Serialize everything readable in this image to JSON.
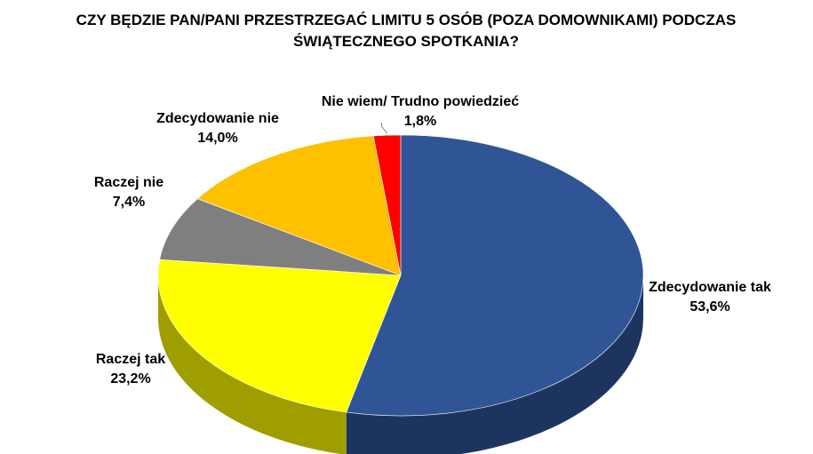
{
  "chart_data": {
    "type": "pie",
    "title_lines": [
      "CZY BĘDZIE PAN/PANI PRZESTRZEGAĆ LIMITU 5 OSÓB (POZA DOMOWNIKAMI) PODCZAS",
      "ŚWIĄTECZNEGO SPOTKANIA?"
    ],
    "slices": [
      {
        "label": "Zdecydowanie tak",
        "value": 53.6,
        "value_text": "53,6%",
        "color": "#2F5597"
      },
      {
        "label": "Raczej tak",
        "value": 23.2,
        "value_text": "23,2%",
        "color": "#FFFF00"
      },
      {
        "label": "Raczej nie",
        "value": 7.4,
        "value_text": "7,4%",
        "color": "#7F7F7F"
      },
      {
        "label": "Zdecydowanie nie",
        "value": 14.0,
        "value_text": "14,0%",
        "color": "#FFC000"
      },
      {
        "label": "Nie wiem/ Trudno powiedzieć",
        "value": 1.8,
        "value_text": "1,8%",
        "color": "#FF0000"
      }
    ],
    "style": "3d",
    "legend": "none",
    "data_labels": "outside"
  }
}
